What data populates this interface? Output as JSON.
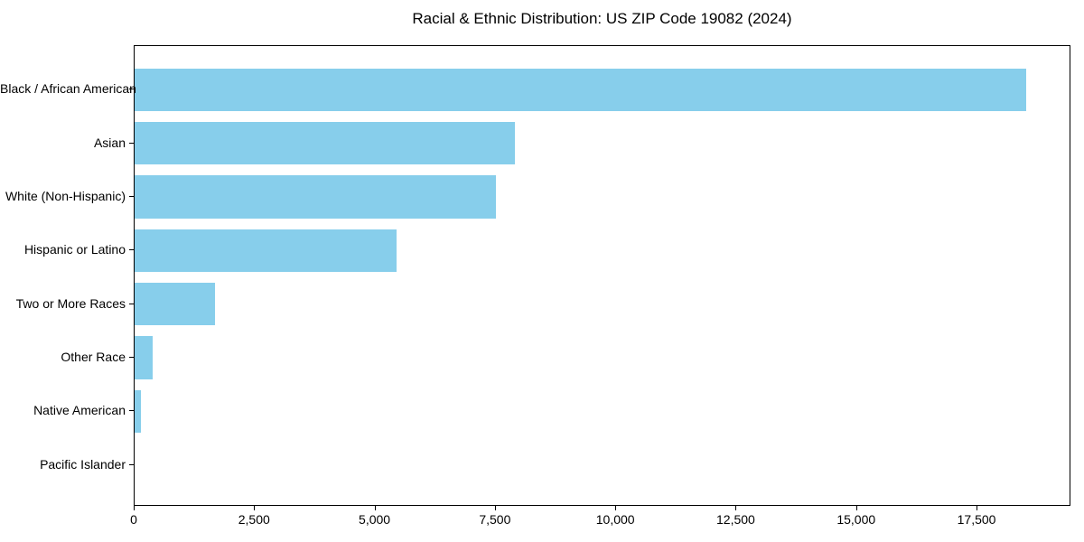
{
  "window": {
    "background_color": "#ffffff"
  },
  "chart_data": {
    "type": "bar",
    "orientation": "horizontal",
    "title": "Racial & Ethnic Distribution: US ZIP Code 19082 (2024)",
    "xlabel": "",
    "ylabel": "",
    "categories": [
      "Black / African American",
      "Asian",
      "White (Non-Hispanic)",
      "Hispanic or Latino",
      "Two or More Races",
      "Other Race",
      "Native American",
      "Pacific Islander"
    ],
    "values": [
      18520,
      7890,
      7500,
      5440,
      1660,
      380,
      125,
      0
    ],
    "xlim": [
      0,
      19450
    ],
    "x_ticks": [
      0,
      2500,
      5000,
      7500,
      10000,
      12500,
      15000,
      17500
    ],
    "x_tick_labels": [
      "0",
      "2,500",
      "5,000",
      "7,500",
      "10,000",
      "12,500",
      "15,000",
      "17,500"
    ],
    "grid": false,
    "legend": null,
    "bar_color": "#87CEEB",
    "axis_color": "#000000",
    "text_color": "#000000"
  }
}
